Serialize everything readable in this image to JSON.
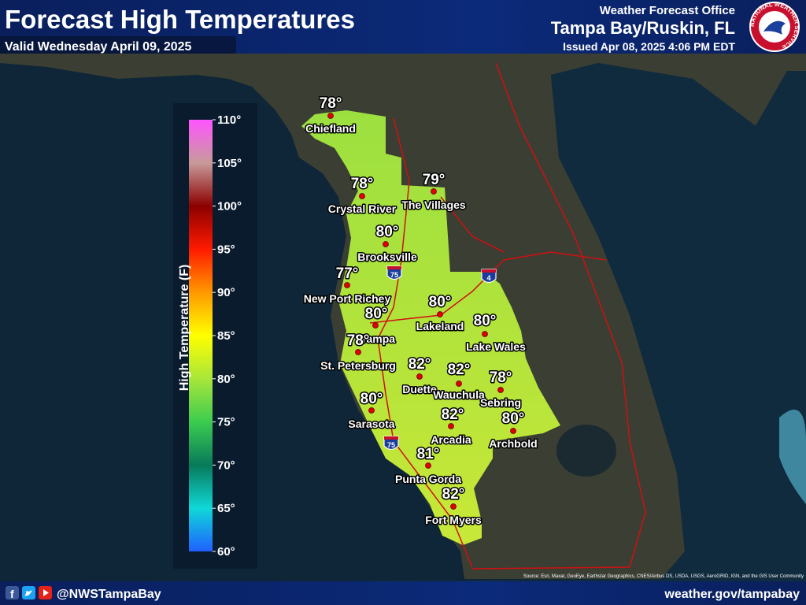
{
  "header": {
    "title": "Forecast High Temperatures",
    "valid": "Valid Wednesday April 09, 2025",
    "office": "Weather Forecast Office",
    "location": "Tampa Bay/Ruskin, FL",
    "issued": "Issued Apr 08, 2025 4:06 PM EDT",
    "logo_text": "NATIONAL WEATHER SERVICE"
  },
  "legend": {
    "title": "High Temperature (F)",
    "ticks": [
      "110°",
      "105°",
      "100°",
      "95°",
      "90°",
      "85°",
      "80°",
      "75°",
      "70°",
      "65°",
      "60°"
    ]
  },
  "cities": [
    {
      "name": "Chiefland",
      "temp": "78°"
    },
    {
      "name": "Crystal River",
      "temp": "78°"
    },
    {
      "name": "The Villages",
      "temp": "79°"
    },
    {
      "name": "Brooksville",
      "temp": "80°"
    },
    {
      "name": "New Port Richey",
      "temp": "77°"
    },
    {
      "name": "Tampa",
      "temp": "80°"
    },
    {
      "name": "Lakeland",
      "temp": "80°"
    },
    {
      "name": "Lake Wales",
      "temp": "80°"
    },
    {
      "name": "St. Petersburg",
      "temp": "78°"
    },
    {
      "name": "Duette",
      "temp": "82°"
    },
    {
      "name": "Wauchula",
      "temp": "82°"
    },
    {
      "name": "Sebring",
      "temp": "78°"
    },
    {
      "name": "Sarasota",
      "temp": "80°"
    },
    {
      "name": "Arcadia",
      "temp": "82°"
    },
    {
      "name": "Archbold",
      "temp": "80°"
    },
    {
      "name": "Punta Gorda",
      "temp": "81°"
    },
    {
      "name": "Fort Myers",
      "temp": "82°"
    }
  ],
  "highways": [
    "75",
    "4",
    "75"
  ],
  "source": "Source: Esri, Maxar, GeoEye, Earthstar Geographics, CNES/Airbus DS, USDA, USGS, AeroGRID, IGN, and the GIS User Community",
  "footer": {
    "handle": "@NWSTampaBay",
    "url": "weather.gov/tampabay"
  }
}
